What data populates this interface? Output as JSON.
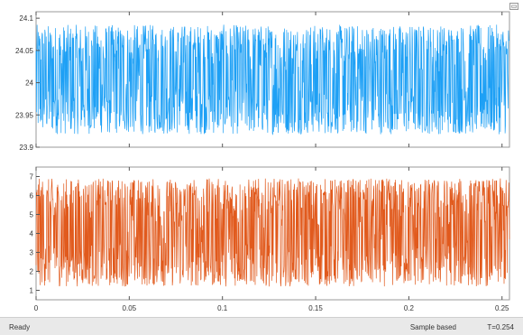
{
  "colors": {
    "series1": "#1ea0f5",
    "series2": "#e15a1d"
  },
  "corner_icon": "undock-icon",
  "status": {
    "ready": "Ready",
    "mode": "Sample based",
    "time": "T=0.254"
  },
  "chart_data": [
    {
      "type": "line",
      "title": "",
      "xlabel": "",
      "ylabel": "",
      "xlim": [
        0,
        0.254
      ],
      "ylim": [
        23.9,
        24.11
      ],
      "yticks": [
        23.9,
        23.95,
        24,
        24.05,
        24.1
      ],
      "ytick_labels": [
        "23.9",
        "23.95",
        "24",
        "24.05",
        "24.1"
      ],
      "xticks": [
        0,
        0.05,
        0.1,
        0.15,
        0.2,
        0.25
      ],
      "xtick_labels": [],
      "grid": false,
      "series": [
        {
          "color": "#1ea0f5",
          "description_range": [
            23.92,
            24.09
          ]
        }
      ]
    },
    {
      "type": "line",
      "title": "",
      "xlabel": "",
      "ylabel": "",
      "xlim": [
        0,
        0.254
      ],
      "ylim": [
        0.5,
        7.5
      ],
      "yticks": [
        1,
        2,
        3,
        4,
        5,
        6,
        7
      ],
      "ytick_labels": [
        "1",
        "2",
        "3",
        "4",
        "5",
        "6",
        "7"
      ],
      "xticks": [
        0,
        0.05,
        0.1,
        0.15,
        0.2,
        0.25
      ],
      "xtick_labels": [
        "0",
        "0.05",
        "0.1",
        "0.15",
        "0.2",
        "0.25"
      ],
      "grid": false,
      "series": [
        {
          "color": "#e15a1d",
          "description_range": [
            1.2,
            6.9
          ]
        }
      ]
    }
  ]
}
